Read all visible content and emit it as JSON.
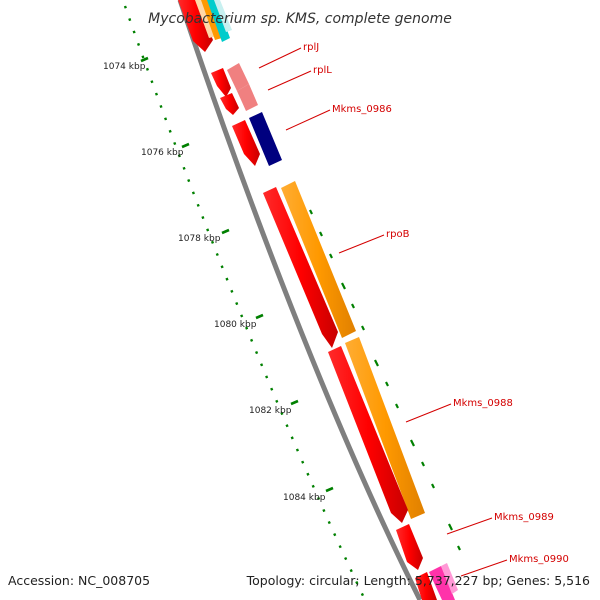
{
  "title": "Mycobacterium sp. KMS, complete genome",
  "ruler_labels": [
    "1074 kbp",
    "1076 kbp",
    "1078 kbp",
    "1080 kbp",
    "1082 kbp",
    "1084 kbp"
  ],
  "genes": [
    {
      "name": "rplJ",
      "color": "#f08080"
    },
    {
      "name": "rplL",
      "color": "#f08080"
    },
    {
      "name": "Mkms_0986",
      "color": "#00007f"
    },
    {
      "name": "rpoB",
      "color": "#ff9900"
    },
    {
      "name": "Mkms_0988",
      "color": "#ff0000"
    },
    {
      "name": "Mkms_0989",
      "color": "#ff0000"
    },
    {
      "name": "Mkms_0990",
      "color": "#ff33aa"
    }
  ],
  "footer": {
    "accession": "Accession: NC_008705",
    "topology": "Topology: circular; Length: 5,737,227 bp; Genes: 5,516"
  },
  "colors": {
    "backbone": "#7f7f7f",
    "ticks": "#008000",
    "label_lines": "#d40000"
  }
}
